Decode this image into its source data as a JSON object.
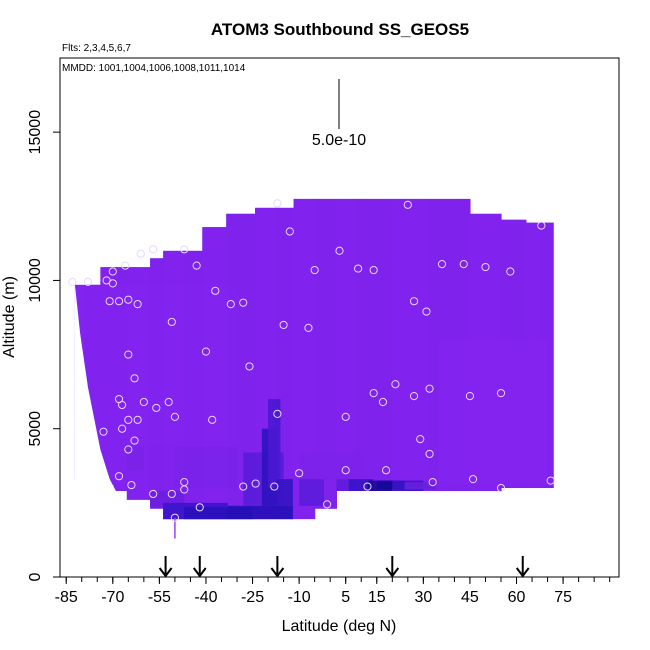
{
  "chart_data": {
    "type": "heatmap",
    "title": "ATOM3 Southbound SS_GEOS5",
    "subtitle_flights": "Flts: 2,3,4,5,6,7",
    "subtitle_dates": "MMDD: 1001,1004,1006,1008,1011,1014",
    "xlabel": "Latitude (deg N)",
    "ylabel": "Altitude (m)",
    "xlim": [
      -87,
      93
    ],
    "ylim": [
      0,
      17500
    ],
    "x_ticks": [
      -85,
      -70,
      -55,
      -40,
      -25,
      -10,
      5,
      15,
      30,
      45,
      60,
      75
    ],
    "x_tick_labels": [
      "-85",
      "-70",
      "-55",
      "-40",
      "-25",
      "-10",
      "5",
      "15",
      "30",
      "45",
      "60",
      "75"
    ],
    "y_ticks": [
      0,
      5000,
      10000,
      15000
    ],
    "y_tick_labels": [
      "0",
      "5000",
      "10000",
      "15000"
    ],
    "scale_bar_label": "5.0e-10",
    "colors": {
      "field": "#8122EE",
      "field_dark": "#7024E6",
      "low_high": "#3A12C8",
      "low_max": "#1A0A9A",
      "points": "#E6D8FF",
      "arrows": "#000000"
    },
    "profile_arrow_latitudes": [
      -53,
      -42,
      -17,
      20,
      62
    ],
    "sample_points": [
      [
        -83,
        9950
      ],
      [
        -78,
        9950
      ],
      [
        -72,
        10000
      ],
      [
        -70,
        10300
      ],
      [
        -70,
        9900
      ],
      [
        -71,
        9300
      ],
      [
        -68,
        9300
      ],
      [
        -66,
        10500
      ],
      [
        -65,
        9350
      ],
      [
        -62,
        9200
      ],
      [
        -61,
        10900
      ],
      [
        -57,
        11050
      ],
      [
        -47,
        11050
      ],
      [
        -43,
        10500
      ],
      [
        -37,
        9650
      ],
      [
        -32,
        9200
      ],
      [
        -28,
        9250
      ],
      [
        -17,
        12600
      ],
      [
        -13,
        11650
      ],
      [
        -5,
        10350
      ],
      [
        3,
        11000
      ],
      [
        9,
        10400
      ],
      [
        14,
        10350
      ],
      [
        25,
        12550
      ],
      [
        27,
        9300
      ],
      [
        31,
        8950
      ],
      [
        36,
        10550
      ],
      [
        43,
        10550
      ],
      [
        50,
        10450
      ],
      [
        58,
        10300
      ],
      [
        68,
        11850
      ],
      [
        -51,
        8600
      ],
      [
        -40,
        7600
      ],
      [
        -65,
        7500
      ],
      [
        -63,
        6700
      ],
      [
        -26,
        7100
      ],
      [
        -15,
        8500
      ],
      [
        -7,
        8400
      ],
      [
        -68,
        6000
      ],
      [
        -67,
        5800
      ],
      [
        -60,
        5900
      ],
      [
        -56,
        5700
      ],
      [
        -52,
        5900
      ],
      [
        -50,
        5400
      ],
      [
        -65,
        5300
      ],
      [
        -62,
        5300
      ],
      [
        -67,
        5000
      ],
      [
        -73,
        4900
      ],
      [
        -63,
        4600
      ],
      [
        -65,
        4300
      ],
      [
        -38,
        5300
      ],
      [
        -17,
        5500
      ],
      [
        5,
        5400
      ],
      [
        14,
        6200
      ],
      [
        17,
        5900
      ],
      [
        21,
        6500
      ],
      [
        27,
        6100
      ],
      [
        32,
        6350
      ],
      [
        45,
        6100
      ],
      [
        55,
        6200
      ],
      [
        29,
        4650
      ],
      [
        32,
        4150
      ],
      [
        -68,
        3400
      ],
      [
        -64,
        3100
      ],
      [
        -57,
        2800
      ],
      [
        -51,
        2800
      ],
      [
        -47,
        2950
      ],
      [
        -47,
        3200
      ],
      [
        -28,
        3050
      ],
      [
        -24,
        3150
      ],
      [
        -18,
        3050
      ],
      [
        -10,
        3500
      ],
      [
        5,
        3600
      ],
      [
        12,
        3050
      ],
      [
        18,
        3600
      ],
      [
        33,
        3200
      ],
      [
        46,
        3300
      ],
      [
        55,
        3000
      ],
      [
        71,
        3250
      ],
      [
        -42,
        2350
      ],
      [
        -1,
        2450
      ],
      [
        -50,
        2000
      ]
    ]
  }
}
